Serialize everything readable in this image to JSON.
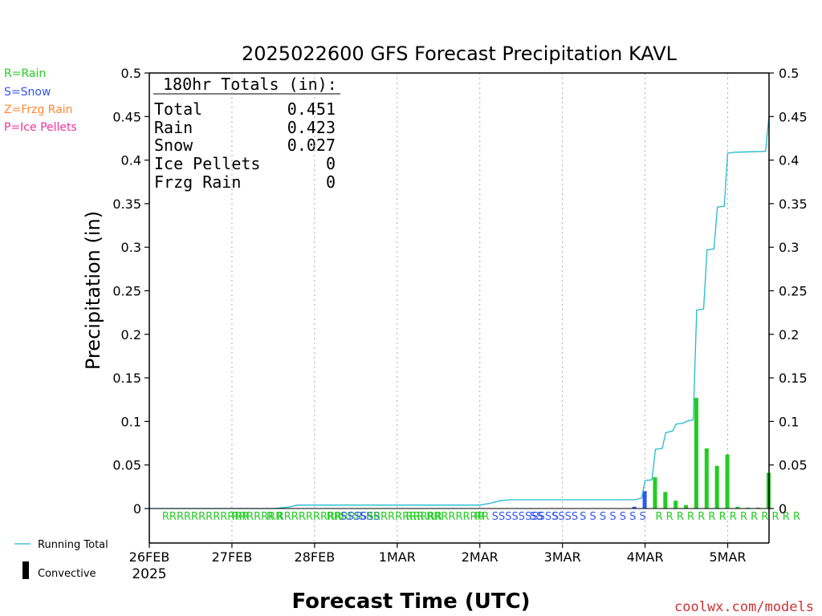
{
  "chart_data": {
    "type": "bar",
    "title": "2025022600 GFS Forecast Precipitation KAVL",
    "xlabel": "Forecast Time (UTC)",
    "ylabel": "Precipitation (in)",
    "ylim": [
      0,
      0.5
    ],
    "yticks": [
      "0",
      "0.05",
      "0.1",
      "0.15",
      "0.2",
      "0.25",
      "0.3",
      "0.35",
      "0.4",
      "0.45",
      "0.5"
    ],
    "x_unit": "forecast hour",
    "xlim": [
      0,
      180
    ],
    "xtick_labels": [
      "26FEB",
      "27FEB",
      "28FEB",
      "1MAR",
      "2MAR",
      "3MAR",
      "4MAR",
      "5MAR"
    ],
    "xtick_sublabel": "2025",
    "grid": "vertical dotted at each day",
    "type_legend": [
      {
        "label": "R=Rain",
        "color": "#22cc22"
      },
      {
        "label": "S=Snow",
        "color": "#3355ee"
      },
      {
        "label": "Z=Frzg Rain",
        "color": "#ff8833"
      },
      {
        "label": "P=Ice Pellets",
        "color": "#ee3399"
      }
    ],
    "series_legend": [
      {
        "label": "Running Total",
        "color": "#22bbcc"
      },
      {
        "label": "Convective",
        "color": "#000000"
      }
    ],
    "totals": {
      "heading": "180hr Totals (in):",
      "rows": [
        {
          "label": "Total",
          "value": "0.451"
        },
        {
          "label": "Rain",
          "value": "0.423"
        },
        {
          "label": "Snow",
          "value": "0.027"
        },
        {
          "label": "Ice Pellets",
          "value": "0"
        },
        {
          "label": "Frzg Rain",
          "value": "0"
        }
      ]
    },
    "bars": [
      {
        "x": 141,
        "value": 0.002,
        "type": "S"
      },
      {
        "x": 144,
        "value": 0.02,
        "type": "S"
      },
      {
        "x": 147,
        "value": 0.036,
        "type": "R"
      },
      {
        "x": 150,
        "value": 0.019,
        "type": "R"
      },
      {
        "x": 153,
        "value": 0.009,
        "type": "R"
      },
      {
        "x": 156,
        "value": 0.004,
        "type": "R"
      },
      {
        "x": 159,
        "value": 0.127,
        "type": "R"
      },
      {
        "x": 162,
        "value": 0.069,
        "type": "R"
      },
      {
        "x": 165,
        "value": 0.049,
        "type": "R"
      },
      {
        "x": 168,
        "value": 0.062,
        "type": "R"
      },
      {
        "x": 171,
        "value": 0.002,
        "type": "R"
      },
      {
        "x": 174,
        "value": 0.001,
        "type": "R"
      },
      {
        "x": 177,
        "value": 0.001,
        "type": "R"
      },
      {
        "x": 180,
        "value": 0.041,
        "type": "R"
      }
    ],
    "running_total": [
      [
        0,
        0
      ],
      [
        36,
        0.0
      ],
      [
        39,
        0.001
      ],
      [
        41,
        0.002
      ],
      [
        43,
        0.004
      ],
      [
        45,
        0.004
      ],
      [
        96,
        0.004
      ],
      [
        99,
        0.006
      ],
      [
        102,
        0.009
      ],
      [
        105,
        0.01
      ],
      [
        141,
        0.01
      ],
      [
        143,
        0.012
      ],
      [
        144,
        0.032
      ],
      [
        146,
        0.033
      ],
      [
        147,
        0.068
      ],
      [
        149,
        0.069
      ],
      [
        150,
        0.087
      ],
      [
        152,
        0.089
      ],
      [
        153,
        0.097
      ],
      [
        155,
        0.098
      ],
      [
        156,
        0.1
      ],
      [
        158,
        0.102
      ],
      [
        159,
        0.228
      ],
      [
        161,
        0.229
      ],
      [
        162,
        0.297
      ],
      [
        164,
        0.298
      ],
      [
        165,
        0.346
      ],
      [
        167,
        0.347
      ],
      [
        168,
        0.408
      ],
      [
        170,
        0.409
      ],
      [
        179,
        0.41
      ],
      [
        180,
        0.451
      ]
    ],
    "type_markers": [
      {
        "x": 3.7,
        "t": "RRRRRRRRRRRR"
      },
      {
        "x": 24.0,
        "t": "RRRRRRR"
      },
      {
        "x": 34.0,
        "t": "R"
      },
      {
        "x": 37.0,
        "t": "RRRRRRRRR"
      },
      {
        "x": 51.5,
        "t": "RRRRR"
      },
      {
        "x": 55.5,
        "t": "SSSSSS"
      },
      {
        "x": 61.0,
        "t": "SRRRRRRRR"
      },
      {
        "x": 74.5,
        "t": "RRRRR"
      },
      {
        "x": 80.5,
        "t": "RRRRRRRR"
      },
      {
        "x": 94.5,
        "t": "RR"
      },
      {
        "x": 99.5,
        "t": "SSSSSSSSSSSSS"
      },
      {
        "x": 110.5,
        "t": "SS"
      },
      {
        "x": 112.5,
        "t": "S"
      },
      {
        "x": 117.0,
        "t": "S"
      },
      {
        "x": 125.0,
        "t": "S S S S S S S"
      },
      {
        "x": 147.0,
        "t": "R R R R R R R R R R R R R R"
      }
    ],
    "credit": "coolwx.com/models"
  }
}
